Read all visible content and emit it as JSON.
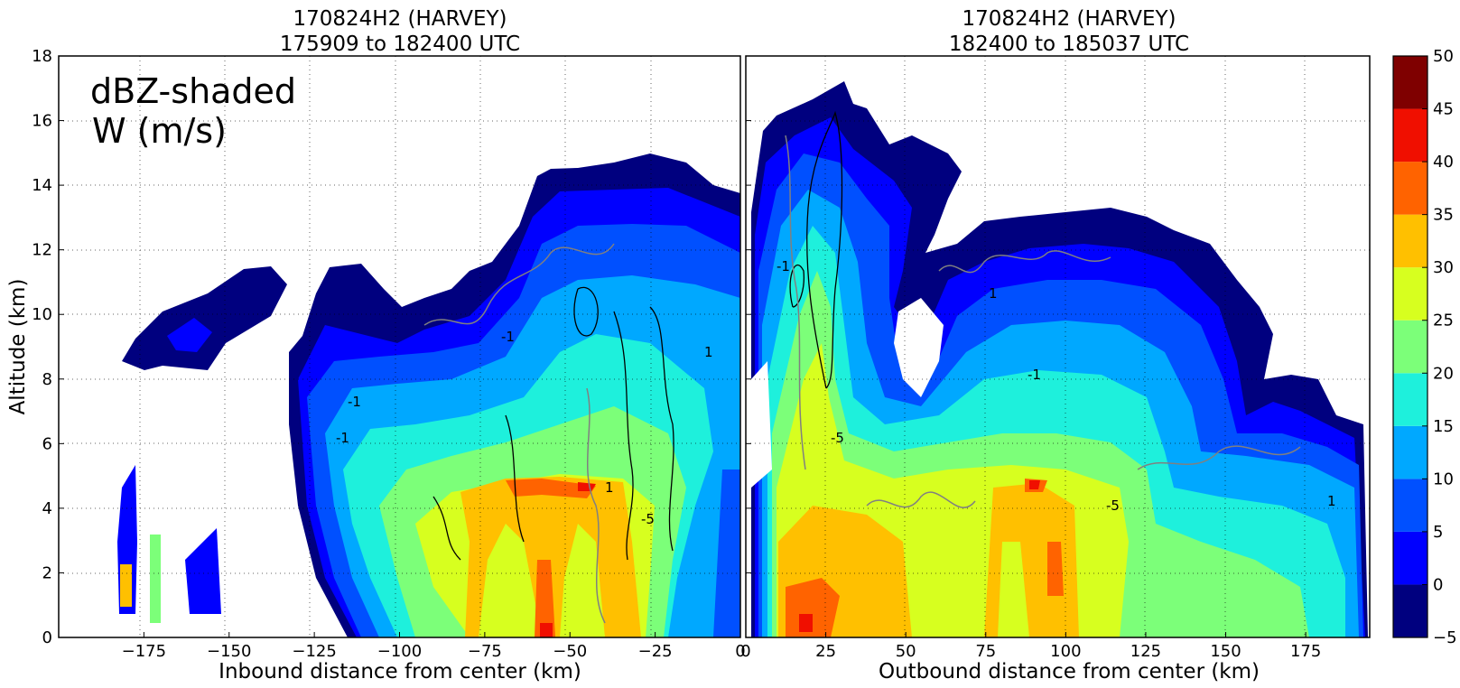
{
  "chart_data": [
    {
      "type": "heatmap",
      "panel": "left",
      "title_lines": [
        "170824H2 (HARVEY)",
        "175909 to 182400 UTC"
      ],
      "xlabel": "Inbound distance from center (km)",
      "ylabel": "Altitude (km)",
      "xlim": [
        -200,
        0
      ],
      "ylim": [
        0,
        18
      ],
      "x_ticks": [
        -175,
        -150,
        -125,
        -100,
        -75,
        -50,
        -25,
        0
      ],
      "x_tick_labels": [
        "−175",
        "−150",
        "−125",
        "−100",
        "−75",
        "−50",
        "−25",
        "0"
      ],
      "y_ticks": [
        0,
        2,
        4,
        6,
        8,
        10,
        12,
        14,
        16,
        18
      ],
      "y_tick_labels": [
        "0",
        "2",
        "4",
        "6",
        "8",
        "10",
        "12",
        "14",
        "16",
        "18"
      ],
      "grid": true,
      "annotation_lines": [
        "dBZ-shaded",
        "W (m/s)"
      ],
      "contour_labels": [
        "-1",
        "1",
        "-5"
      ]
    },
    {
      "type": "heatmap",
      "panel": "right",
      "title_lines": [
        "170824H2 (HARVEY)",
        "182400 to 185037 UTC"
      ],
      "xlabel": "Outbound distance from center (km)",
      "xlim": [
        0,
        195
      ],
      "ylim": [
        0,
        18
      ],
      "x_ticks": [
        0,
        25,
        50,
        75,
        100,
        125,
        150,
        175
      ],
      "x_tick_labels": [
        "0",
        "25",
        "50",
        "75",
        "100",
        "125",
        "150",
        "175"
      ],
      "grid": true,
      "contour_labels": [
        "-1",
        "1",
        "-5"
      ]
    }
  ],
  "colorbar": {
    "ticks": [
      -5,
      0,
      5,
      10,
      15,
      20,
      25,
      30,
      35,
      40,
      45,
      50
    ],
    "tick_labels": [
      "−5",
      "0",
      "5",
      "10",
      "15",
      "20",
      "25",
      "30",
      "35",
      "40",
      "45",
      "50"
    ],
    "colors": [
      "#00007f",
      "#0000ff",
      "#0050ff",
      "#00a8ff",
      "#1ef0dc",
      "#7cff79",
      "#d7ff1f",
      "#ffc000",
      "#ff6300",
      "#f00f00",
      "#7f0000"
    ]
  }
}
